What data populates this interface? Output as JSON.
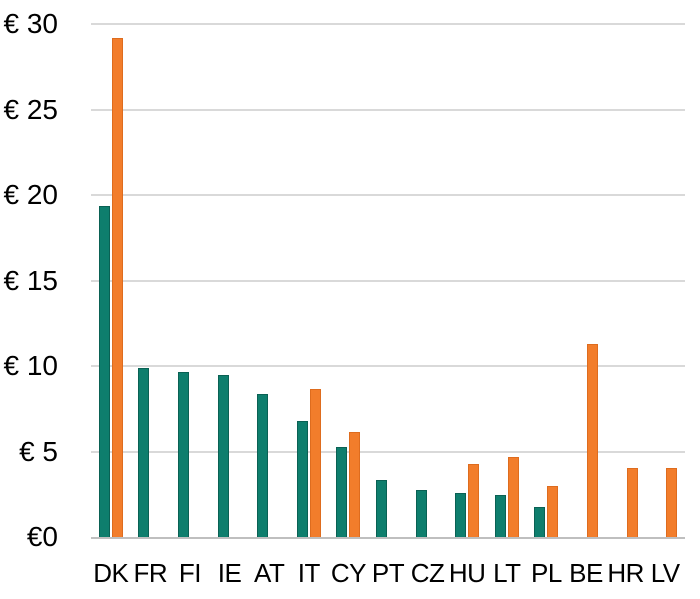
{
  "chart_data": {
    "type": "bar",
    "title": "",
    "xlabel": "",
    "ylabel": "",
    "currency_symbol": "€",
    "ylim": [
      0,
      30
    ],
    "grid": "horizontal",
    "legend_position": "none",
    "categories": [
      "DK",
      "FR",
      "FI",
      "IE",
      "AT",
      "IT",
      "CY",
      "PT",
      "CZ",
      "HU",
      "LT",
      "PL",
      "BE",
      "HR",
      "LV"
    ],
    "series": [
      {
        "name": "teal-series",
        "color": "#0E7E6D",
        "border_color": "#0A6154",
        "values": [
          19.3,
          9.8,
          9.6,
          9.4,
          8.3,
          6.7,
          5.2,
          3.3,
          2.7,
          2.5,
          2.4,
          1.7,
          null,
          null,
          null
        ]
      },
      {
        "name": "orange-series",
        "color": "#F27D2B",
        "border_color": "#DE6C1E",
        "values": [
          29.1,
          null,
          null,
          null,
          null,
          8.6,
          6.1,
          null,
          null,
          4.2,
          4.6,
          2.9,
          11.2,
          4.0,
          4.0
        ]
      }
    ],
    "yticks": [
      {
        "value": 30,
        "label": "€ 30"
      },
      {
        "value": 25,
        "label": "€ 25"
      },
      {
        "value": 20,
        "label": "€ 20"
      },
      {
        "value": 15,
        "label": "€ 15"
      },
      {
        "value": 10,
        "label": "€ 10"
      },
      {
        "value": 5,
        "label": "€ 5"
      },
      {
        "value": 0,
        "label": "€0"
      }
    ],
    "colors": {
      "gridline": "#d9d9d9",
      "axis_line": "#bfbfbf",
      "text": "#000000",
      "background": "#ffffff"
    }
  }
}
